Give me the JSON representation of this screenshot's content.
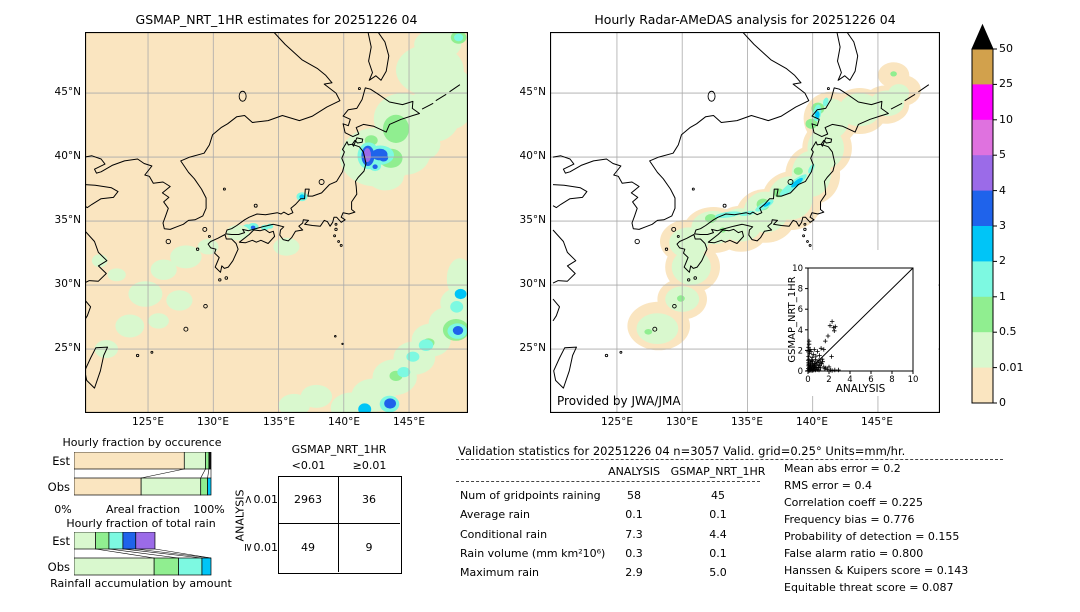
{
  "chart_data": [
    {
      "type": "heatmap",
      "panel": "left",
      "title": "GSMAP_NRT_1HR estimates for 20251226 04",
      "lon_ticks": [
        "125°E",
        "130°E",
        "135°E",
        "140°E",
        "145°E"
      ],
      "lat_ticks": [
        "45°N",
        "40°N",
        "35°N",
        "30°N",
        "25°N"
      ],
      "units": "mm/hr",
      "description": "Satellite precipitation estimate map over Japan, background shading 0-0.01 mm/hr with green/cyan/blue rain areas and a purple-core storm near 40N 141.5E"
    },
    {
      "type": "heatmap",
      "panel": "right",
      "title": "Hourly Radar-AMeDAS analysis for 20251226 04",
      "lon_ticks": [
        "125°E",
        "130°E",
        "135°E",
        "140°E",
        "145°E"
      ],
      "lat_ticks": [
        "45°N",
        "40°N",
        "35°N",
        "30°N",
        "25°N"
      ],
      "credit": "Provided by JWA/JMA",
      "units": "mm/hr",
      "colorbar": {
        "tick_labels": [
          "50",
          "25",
          "10",
          "5",
          "4",
          "3",
          "2",
          "1",
          "0.5",
          "0.01",
          "0"
        ],
        "colors_top_to_bottom": [
          "#d2a14c",
          "#ff00ff",
          "#df72df",
          "#9b6be8",
          "#1f63eb",
          "#00c5f7",
          "#7df9e1",
          "#90ee90",
          "#d9f8ce",
          "#fae5c0"
        ],
        "overflow_color": "#000000"
      }
    },
    {
      "type": "bar",
      "orientation": "horizontal",
      "stacked": true,
      "title": "Hourly fraction by occurence",
      "categories": [
        "Est",
        "Obs"
      ],
      "xlabel": "Areal fraction",
      "x_min_label": "0%",
      "x_max_label": "100%",
      "rows": [
        {
          "name": "Est",
          "segments": [
            [
              "#fae5c0",
              0.805
            ],
            [
              "#d9f8ce",
              0.155
            ],
            [
              "#90ee90",
              0.025
            ],
            [
              "#111111",
              0.015
            ]
          ]
        },
        {
          "name": "Obs",
          "segments": [
            [
              "#fae5c0",
              0.49
            ],
            [
              "#d9f8ce",
              0.435
            ],
            [
              "#90ee90",
              0.05
            ],
            [
              "#00c5f7",
              0.025
            ]
          ]
        }
      ],
      "connectors": [
        [
          0,
          0
        ],
        [
          0.805,
          0.49
        ],
        [
          0.96,
          0.925
        ],
        [
          0.985,
          0.975
        ],
        [
          1,
          1
        ]
      ]
    },
    {
      "type": "bar",
      "orientation": "horizontal",
      "stacked": true,
      "title": "Hourly fraction of total rain",
      "categories": [
        "Est",
        "Obs"
      ],
      "xlabel": "Rainfall accumulation by amount",
      "rows": [
        {
          "name": "Est",
          "segments": [
            [
              "#d9f8ce",
              0.158
            ],
            [
              "#90ee90",
              0.097
            ],
            [
              "#7df9e1",
              0.102
            ],
            [
              "#1f63eb",
              0.094
            ],
            [
              "#9b6be8",
              0.14
            ]
          ]
        },
        {
          "name": "Obs",
          "segments": [
            [
              "#d9f8ce",
              0.585
            ],
            [
              "#90ee90",
              0.178
            ],
            [
              "#7df9e1",
              0.171
            ],
            [
              "#00c5f7",
              0.066
            ]
          ]
        }
      ],
      "connectors": [
        [
          0,
          0
        ],
        [
          0.158,
          0.585
        ],
        [
          0.255,
          0.763
        ],
        [
          0.357,
          0.934
        ],
        [
          0.451,
          1
        ],
        [
          0.591,
          1
        ]
      ]
    },
    {
      "type": "table",
      "name": "contingency",
      "col_group": "GSMAP_NRT_1HR",
      "row_group": "ANALYSIS",
      "col_labels": [
        "<0.01",
        "≥0.01"
      ],
      "row_labels": [
        {
          "symbol": "<",
          "value": "0.01"
        },
        {
          "symbol": "≥",
          "value": "0.01"
        }
      ],
      "values": [
        [
          "2963",
          "36"
        ],
        [
          "49",
          "9"
        ]
      ]
    },
    {
      "type": "table",
      "name": "validation-statistics",
      "title": "Validation statistics for 20251226 04  n=3057 Valid. grid=0.25° Units=mm/hr.",
      "col_headers": [
        "ANALYSIS",
        "GSMAP_NRT_1HR"
      ],
      "rows": [
        [
          "Num of gridpoints raining",
          "58",
          "45"
        ],
        [
          "Average rain",
          "0.1",
          "0.1"
        ],
        [
          "Conditional rain",
          "7.3",
          "4.4"
        ],
        [
          "Rain volume (mm km²10⁶)",
          "0.3",
          "0.1"
        ],
        [
          "Maximum rain",
          "2.9",
          "5.0"
        ]
      ],
      "metrics": [
        [
          "Mean abs error",
          "0.2"
        ],
        [
          "RMS error",
          "0.4"
        ],
        [
          "Correlation coeff",
          "0.225"
        ],
        [
          "Frequency bias",
          "0.776"
        ],
        [
          "Probability of detection",
          "0.155"
        ],
        [
          "False alarm ratio",
          "0.800"
        ],
        [
          "Hanssen & Kuipers score",
          "0.143"
        ],
        [
          "Equitable threat score",
          "0.087"
        ]
      ]
    },
    {
      "type": "scatter",
      "xlabel": "ANALYSIS",
      "ylabel": "GSMAP_NRT_1HR",
      "xlim": [
        0,
        10
      ],
      "ylim": [
        0,
        10
      ],
      "x_ticks": [
        "0",
        "2",
        "4",
        "6",
        "8",
        "10"
      ],
      "y_ticks": [
        "0",
        "2",
        "4",
        "6",
        "8",
        "10"
      ],
      "diagonal": true,
      "marker": "+",
      "points": [
        [
          0.05,
          0.05
        ],
        [
          0.1,
          0.15
        ],
        [
          0.15,
          0.05
        ],
        [
          0.2,
          0.1
        ],
        [
          0.25,
          0.2
        ],
        [
          0.3,
          0.05
        ],
        [
          0.35,
          0.3
        ],
        [
          0.4,
          0.15
        ],
        [
          0.45,
          0.05
        ],
        [
          0.5,
          0.3
        ],
        [
          0.55,
          0.1
        ],
        [
          0.6,
          0.45
        ],
        [
          0.65,
          0.2
        ],
        [
          0.7,
          0.1
        ],
        [
          0.75,
          0.55
        ],
        [
          0.8,
          0.3
        ],
        [
          0.9,
          0.15
        ],
        [
          0.95,
          0.6
        ],
        [
          1.0,
          0.35
        ],
        [
          1.05,
          0.1
        ],
        [
          1.1,
          0.55
        ],
        [
          1.2,
          0.3
        ],
        [
          1.3,
          0.7
        ],
        [
          1.4,
          0.9
        ],
        [
          1.5,
          0.4
        ],
        [
          1.6,
          0.2
        ],
        [
          1.7,
          0.3
        ],
        [
          1.85,
          0.15
        ],
        [
          2.0,
          0.4
        ],
        [
          2.15,
          0.1
        ],
        [
          2.3,
          0.05
        ],
        [
          2.55,
          0.1
        ],
        [
          2.9,
          0.1
        ],
        [
          0.05,
          0.5
        ],
        [
          0.05,
          0.8
        ],
        [
          0.1,
          1.1
        ],
        [
          0.05,
          1.4
        ],
        [
          0.15,
          1.7
        ],
        [
          0.1,
          2.0
        ],
        [
          0.05,
          2.3
        ],
        [
          0.2,
          2.1
        ],
        [
          0.1,
          2.6
        ],
        [
          0.1,
          2.9
        ],
        [
          0.3,
          1.9
        ],
        [
          0.4,
          1.3
        ],
        [
          0.5,
          1.6
        ],
        [
          0.6,
          2.1
        ],
        [
          0.7,
          1.1
        ],
        [
          0.9,
          1.9
        ],
        [
          1.1,
          1.5
        ],
        [
          1.25,
          2.2
        ],
        [
          1.5,
          2.1
        ],
        [
          1.65,
          2.9
        ],
        [
          1.9,
          3.4
        ],
        [
          2.1,
          4.4
        ],
        [
          2.3,
          4.8
        ],
        [
          2.45,
          4.2
        ],
        [
          2.6,
          4.3
        ],
        [
          2.5,
          3.9
        ],
        [
          2.25,
          1.4
        ],
        [
          0.85,
          0.85
        ],
        [
          0.2,
          0.55
        ],
        [
          0.3,
          0.75
        ],
        [
          0.45,
          0.95
        ],
        [
          0.12,
          0.35
        ],
        [
          0.6,
          0.75
        ],
        [
          1.15,
          0.8
        ],
        [
          0.75,
          1.45
        ],
        [
          0.35,
          1.05
        ],
        [
          0.28,
          0.42
        ],
        [
          0.18,
          0.28
        ],
        [
          0.08,
          0.65
        ],
        [
          0.5,
          0.55
        ],
        [
          0.65,
          0.38
        ],
        [
          0.42,
          0.62
        ],
        [
          0.22,
          0.88
        ],
        [
          0.02,
          1.05
        ],
        [
          0.02,
          0.25
        ],
        [
          0.02,
          1.85
        ],
        [
          1.35,
          1.15
        ],
        [
          1.05,
          1.05
        ]
      ]
    }
  ]
}
